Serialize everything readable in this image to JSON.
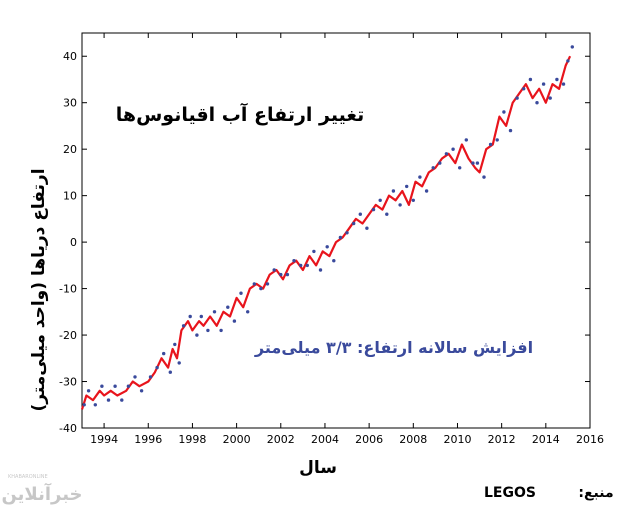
{
  "chart_data": {
    "type": "line",
    "title": "تغییر ارتفاع آب اقیانوس‌ها",
    "xlabel": "سال",
    "ylabel": "ارتفاع دریاها (واحد میلی‌متر)",
    "annotation": "افزایش سالانه ارتفاع: ۳/۳ میلی‌متر",
    "xlim": [
      1993,
      2016
    ],
    "ylim": [
      -40,
      45
    ],
    "x_ticks": [
      1994,
      1996,
      1998,
      2000,
      2002,
      2004,
      2006,
      2008,
      2010,
      2012,
      2014,
      2016
    ],
    "y_ticks": [
      -40,
      -30,
      -20,
      -10,
      0,
      10,
      20,
      30,
      40
    ],
    "grid": false,
    "series": [
      {
        "style": "line",
        "color": "#e8141c",
        "x": [
          1993.0,
          1993.2,
          1993.5,
          1993.8,
          1994.0,
          1994.3,
          1994.6,
          1995.0,
          1995.3,
          1995.6,
          1996.0,
          1996.3,
          1996.6,
          1996.9,
          1997.1,
          1997.3,
          1997.5,
          1997.8,
          1998.0,
          1998.3,
          1998.5,
          1998.8,
          1999.1,
          1999.4,
          1999.7,
          2000.0,
          2000.3,
          2000.6,
          2000.9,
          2001.2,
          2001.5,
          2001.8,
          2002.1,
          2002.4,
          2002.7,
          2003.0,
          2003.3,
          2003.6,
          2003.9,
          2004.2,
          2004.5,
          2004.8,
          2005.1,
          2005.4,
          2005.7,
          2006.0,
          2006.3,
          2006.6,
          2006.9,
          2007.2,
          2007.5,
          2007.8,
          2008.1,
          2008.4,
          2008.7,
          2009.0,
          2009.3,
          2009.6,
          2009.9,
          2010.2,
          2010.5,
          2010.8,
          2011.0,
          2011.3,
          2011.6,
          2011.9,
          2012.2,
          2012.5,
          2012.8,
          2013.1,
          2013.4,
          2013.7,
          2014.0,
          2014.3,
          2014.6,
          2014.9,
          2015.1
        ],
        "y": [
          -36,
          -33,
          -34,
          -32,
          -33,
          -32,
          -33,
          -32,
          -30,
          -31,
          -30,
          -28,
          -25,
          -27,
          -23,
          -25,
          -19,
          -17,
          -19,
          -17,
          -18,
          -16,
          -18,
          -15,
          -16,
          -12,
          -14,
          -10,
          -9,
          -10,
          -7,
          -6,
          -8,
          -5,
          -4,
          -6,
          -3,
          -5,
          -2,
          -3,
          0,
          1,
          3,
          5,
          4,
          6,
          8,
          7,
          10,
          9,
          11,
          8,
          13,
          12,
          15,
          16,
          18,
          19,
          17,
          21,
          18,
          16,
          15,
          20,
          21,
          27,
          25,
          30,
          32,
          34,
          31,
          33,
          30,
          34,
          33,
          38,
          40
        ]
      },
      {
        "style": "scatter",
        "color": "#3a4a9c",
        "x": [
          1993.1,
          1993.3,
          1993.6,
          1993.9,
          1994.2,
          1994.5,
          1994.8,
          1995.1,
          1995.4,
          1995.7,
          1996.1,
          1996.4,
          1996.7,
          1997.0,
          1997.2,
          1997.4,
          1997.6,
          1997.9,
          1998.2,
          1998.4,
          1998.7,
          1999.0,
          1999.3,
          1999.6,
          1999.9,
          2000.2,
          2000.5,
          2000.8,
          2001.1,
          2001.4,
          2001.7,
          2002.0,
          2002.3,
          2002.6,
          2002.9,
          2003.2,
          2003.5,
          2003.8,
          2004.1,
          2004.4,
          2004.7,
          2005.0,
          2005.3,
          2005.6,
          2005.9,
          2006.2,
          2006.5,
          2006.8,
          2007.1,
          2007.4,
          2007.7,
          2008.0,
          2008.3,
          2008.6,
          2008.9,
          2009.2,
          2009.5,
          2009.8,
          2010.1,
          2010.4,
          2010.7,
          2010.9,
          2011.2,
          2011.5,
          2011.8,
          2012.1,
          2012.4,
          2012.7,
          2013.0,
          2013.3,
          2013.6,
          2013.9,
          2014.2,
          2014.5,
          2014.8,
          2015.0,
          2015.2
        ],
        "y": [
          -35,
          -32,
          -35,
          -31,
          -34,
          -31,
          -34,
          -31,
          -29,
          -32,
          -29,
          -27,
          -24,
          -28,
          -22,
          -26,
          -18,
          -16,
          -20,
          -16,
          -19,
          -15,
          -19,
          -14,
          -17,
          -11,
          -15,
          -9,
          -10,
          -9,
          -6,
          -7,
          -7,
          -4,
          -5,
          -5,
          -2,
          -6,
          -1,
          -4,
          1,
          2,
          4,
          6,
          3,
          7,
          9,
          6,
          11,
          8,
          12,
          9,
          14,
          11,
          16,
          17,
          19,
          20,
          16,
          22,
          17,
          17,
          14,
          21,
          22,
          28,
          24,
          31,
          33,
          35,
          30,
          34,
          31,
          35,
          34,
          39,
          42
        ]
      }
    ]
  },
  "source": {
    "label": "منبع:",
    "value": "LEGOS"
  },
  "logo": {
    "text": "خبرآنلاین",
    "subtext": "KHABARONLINE"
  }
}
